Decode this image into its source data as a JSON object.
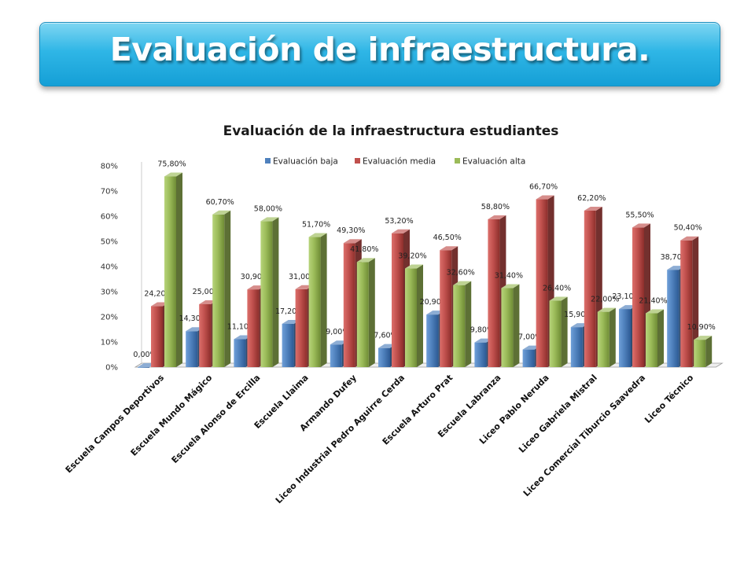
{
  "slide": {
    "title": "Evaluación de infraestructura."
  },
  "colors": {
    "banner": "#2fb6e6",
    "series": [
      "#4f81bd",
      "#c0504d",
      "#9bbb59"
    ]
  },
  "chart_data": {
    "type": "bar",
    "title": "Evaluación de la infraestructura estudiantes",
    "xlabel": "",
    "ylabel": "",
    "ylim": [
      0,
      80
    ],
    "y_ticks": [
      "0%",
      "10%",
      "20%",
      "30%",
      "40%",
      "50%",
      "60%",
      "70%",
      "80%"
    ],
    "legend_position": "top",
    "grid": false,
    "categories": [
      "Escuela Campos Deportivos",
      "Escuela Mundo Mágico",
      "Escuela Alonso de Ercilla",
      "Escuela Llaima",
      "Armando Dufey",
      "Liceo Industrial Pedro Aguirre Cerda",
      "Escuela Arturo Prat",
      "Escuela Labranza",
      "Liceo Pablo Neruda",
      "Liceo Gabriela Mistral",
      "Liceo Comercial Tiburcio Saavedra",
      "Liceo Técnico"
    ],
    "series": [
      {
        "name": "Evaluación baja",
        "values": [
          0.0,
          14.3,
          11.1,
          17.2,
          9.0,
          7.6,
          20.9,
          9.8,
          7.0,
          15.9,
          23.1,
          38.7
        ],
        "labels": [
          "0,00%",
          "14,30%",
          "11,10%",
          "17,20%",
          "9,00%",
          "7,60%",
          "20,90%",
          "9,80%",
          "7,00%",
          "15,90%",
          "23,10%",
          "38,70%"
        ]
      },
      {
        "name": "Evaluación media",
        "values": [
          24.2,
          25.0,
          30.9,
          31.0,
          49.3,
          53.2,
          46.5,
          58.8,
          66.7,
          62.2,
          55.5,
          50.4
        ],
        "labels": [
          "24,20%",
          "25,00%",
          "30,90%",
          "31,00%",
          "49,30%",
          "53,20%",
          "46,50%",
          "58,80%",
          "66,70%",
          "62,20%",
          "55,50%",
          "50,40%"
        ]
      },
      {
        "name": "Evaluación alta",
        "values": [
          75.8,
          60.7,
          58.0,
          51.7,
          41.8,
          39.2,
          32.6,
          31.4,
          26.4,
          22.0,
          21.4,
          10.9
        ],
        "labels": [
          "75,80%",
          "60,70%",
          "58,00%",
          "51,70%",
          "41,80%",
          "39,20%",
          "32,60%",
          "31,40%",
          "26,40%",
          "22,00%",
          "21,40%",
          "10,90%"
        ]
      }
    ]
  }
}
